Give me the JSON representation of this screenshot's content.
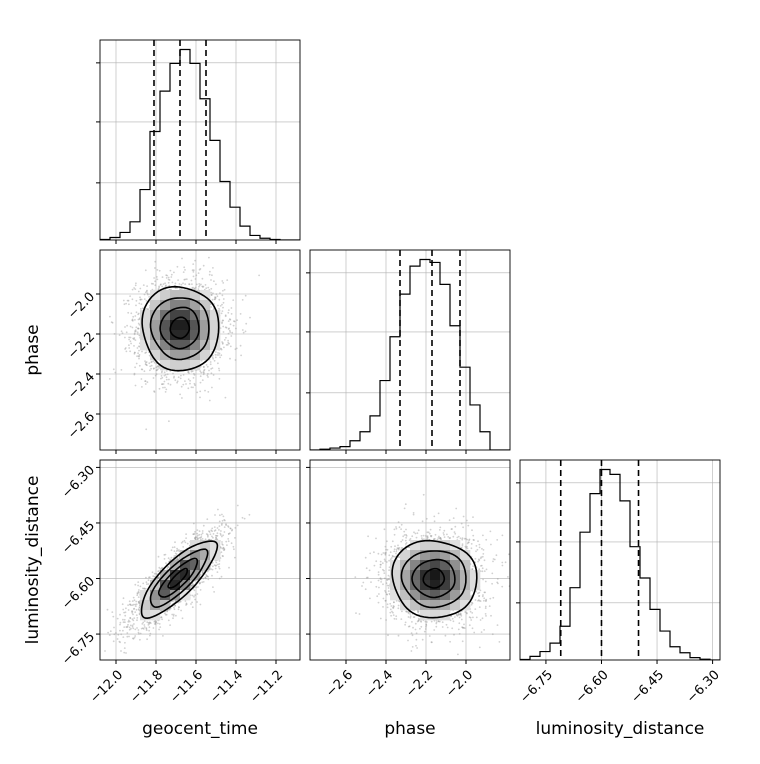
{
  "chart_data": {
    "type": "corner",
    "parameters": [
      "geocent_time",
      "phase",
      "luminosity_distance"
    ],
    "axis_labels": {
      "geocent_time": "geocent_time",
      "phase": "phase",
      "luminosity_distance": "luminosity_distance"
    },
    "ranges": {
      "geocent_time": [
        -12.08,
        -11.08
      ],
      "phase": [
        -2.78,
        -1.78
      ],
      "luminosity_distance": [
        -6.82,
        -6.28
      ]
    },
    "ticks": {
      "geocent_time": [
        -12.0,
        -11.8,
        -11.6,
        -11.4,
        -11.2
      ],
      "phase": [
        -2.6,
        -2.4,
        -2.2,
        -2.0
      ],
      "luminosity_distance": [
        -6.75,
        -6.6,
        -6.45,
        -6.3
      ]
    },
    "tick_labels": {
      "geocent_time": [
        "−12.0",
        "−11.8",
        "−11.6",
        "−11.4",
        "−11.2"
      ],
      "phase": [
        "−2.6",
        "−2.4",
        "−2.2",
        "−2.0"
      ],
      "luminosity_distance": [
        "−6.75",
        "−6.60",
        "−6.45",
        "−6.30"
      ]
    },
    "quantiles": {
      "geocent_time": [
        -11.81,
        -11.68,
        -11.55
      ],
      "phase": [
        -2.33,
        -2.17,
        -2.03
      ],
      "luminosity_distance": [
        -6.71,
        -6.6,
        -6.5
      ]
    },
    "histograms": {
      "geocent_time": {
        "edges": [
          -12.08,
          -12.03,
          -11.98,
          -11.93,
          -11.88,
          -11.83,
          -11.78,
          -11.73,
          -11.68,
          -11.63,
          -11.58,
          -11.53,
          -11.48,
          -11.43,
          -11.38,
          -11.33,
          -11.28,
          -11.23,
          -11.18,
          -11.13,
          -11.08
        ],
        "counts": [
          2,
          10,
          30,
          72,
          200,
          430,
          590,
          700,
          755,
          700,
          560,
          395,
          232,
          130,
          55,
          18,
          7,
          2,
          0,
          0
        ]
      },
      "phase": {
        "edges": [
          -2.78,
          -2.73,
          -2.68,
          -2.63,
          -2.58,
          -2.53,
          -2.48,
          -2.43,
          -2.38,
          -2.33,
          -2.28,
          -2.23,
          -2.18,
          -2.13,
          -2.08,
          -2.03,
          -1.98,
          -1.93,
          -1.88,
          -1.83,
          -1.78
        ],
        "counts": [
          0,
          3,
          8,
          14,
          38,
          75,
          140,
          285,
          465,
          640,
          755,
          782,
          770,
          680,
          510,
          340,
          185,
          75,
          0,
          0
        ]
      },
      "luminosity_distance": {
        "edges": [
          -6.82,
          -6.793,
          -6.766,
          -6.739,
          -6.712,
          -6.685,
          -6.658,
          -6.631,
          -6.604,
          -6.577,
          -6.55,
          -6.523,
          -6.496,
          -6.469,
          -6.442,
          -6.415,
          -6.388,
          -6.361,
          -6.334,
          -6.307,
          -6.28
        ],
        "counts": [
          2,
          15,
          35,
          70,
          140,
          300,
          530,
          690,
          790,
          770,
          660,
          470,
          340,
          210,
          120,
          55,
          30,
          10,
          3,
          0
        ]
      }
    },
    "density": {
      "geocent_time|phase": {
        "mean": [
          -11.68,
          -2.17
        ],
        "std": [
          0.095,
          0.105
        ],
        "corr": 0.0
      },
      "geocent_time|luminosity_distance": {
        "mean": [
          -11.69,
          -6.6
        ],
        "std": [
          0.095,
          0.052
        ],
        "corr": 0.82
      },
      "phase|luminosity_distance": {
        "mean": [
          -2.16,
          -6.6
        ],
        "std": [
          0.105,
          0.052
        ],
        "corr": 0.0
      }
    },
    "contour_levels": [
      0.5,
      1.0,
      1.5,
      2.0
    ],
    "colors": {
      "hist": "#000000",
      "contour": "#000000",
      "scatter": "#9a9a9a",
      "grid": "#b0b0b0"
    },
    "grid": true
  }
}
